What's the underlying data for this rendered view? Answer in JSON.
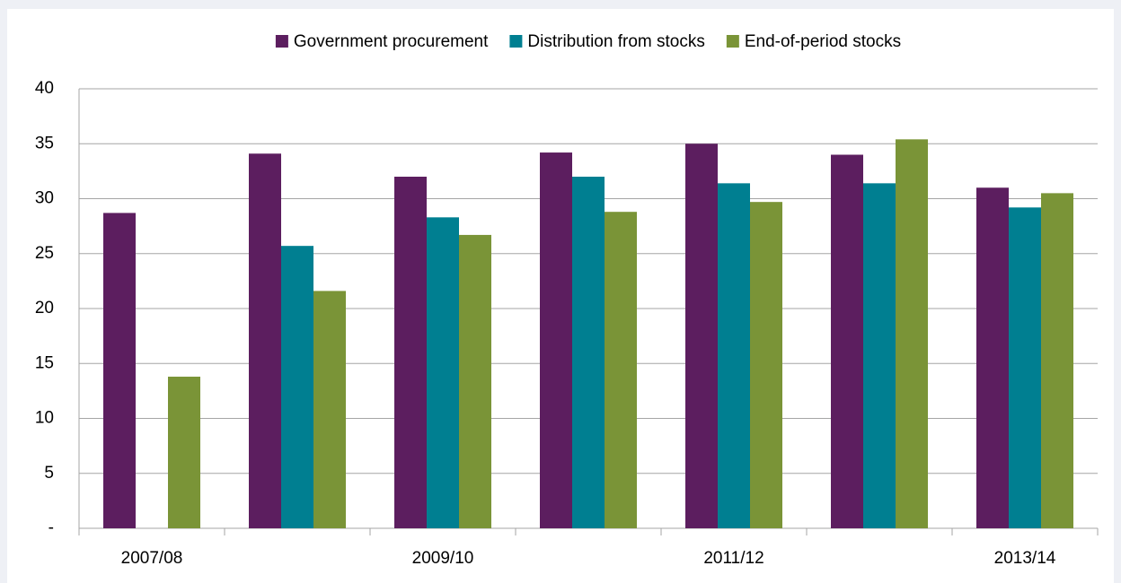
{
  "chart_data": {
    "type": "bar",
    "categories": [
      "2007/08",
      null,
      "2009/10",
      null,
      "2011/12",
      null,
      "2013/14"
    ],
    "series": [
      {
        "name": "Government procurement",
        "color": "#5c1e5f",
        "values": [
          28.7,
          34.1,
          32.0,
          34.2,
          35.0,
          34.0,
          31.0
        ]
      },
      {
        "name": "Distribution from stocks",
        "color": "#007f91",
        "values": [
          null,
          25.7,
          28.3,
          32.0,
          31.4,
          31.4,
          29.2
        ]
      },
      {
        "name": "End-of-period stocks",
        "color": "#7a9437",
        "values": [
          13.8,
          21.6,
          26.7,
          28.8,
          29.7,
          35.4,
          30.5
        ]
      }
    ],
    "ylim": [
      0,
      40
    ],
    "yticks": [
      {
        "value": 0,
        "label": "-"
      },
      5,
      10,
      15,
      20,
      25,
      30,
      35,
      40
    ],
    "grid": true,
    "legend": "top"
  }
}
